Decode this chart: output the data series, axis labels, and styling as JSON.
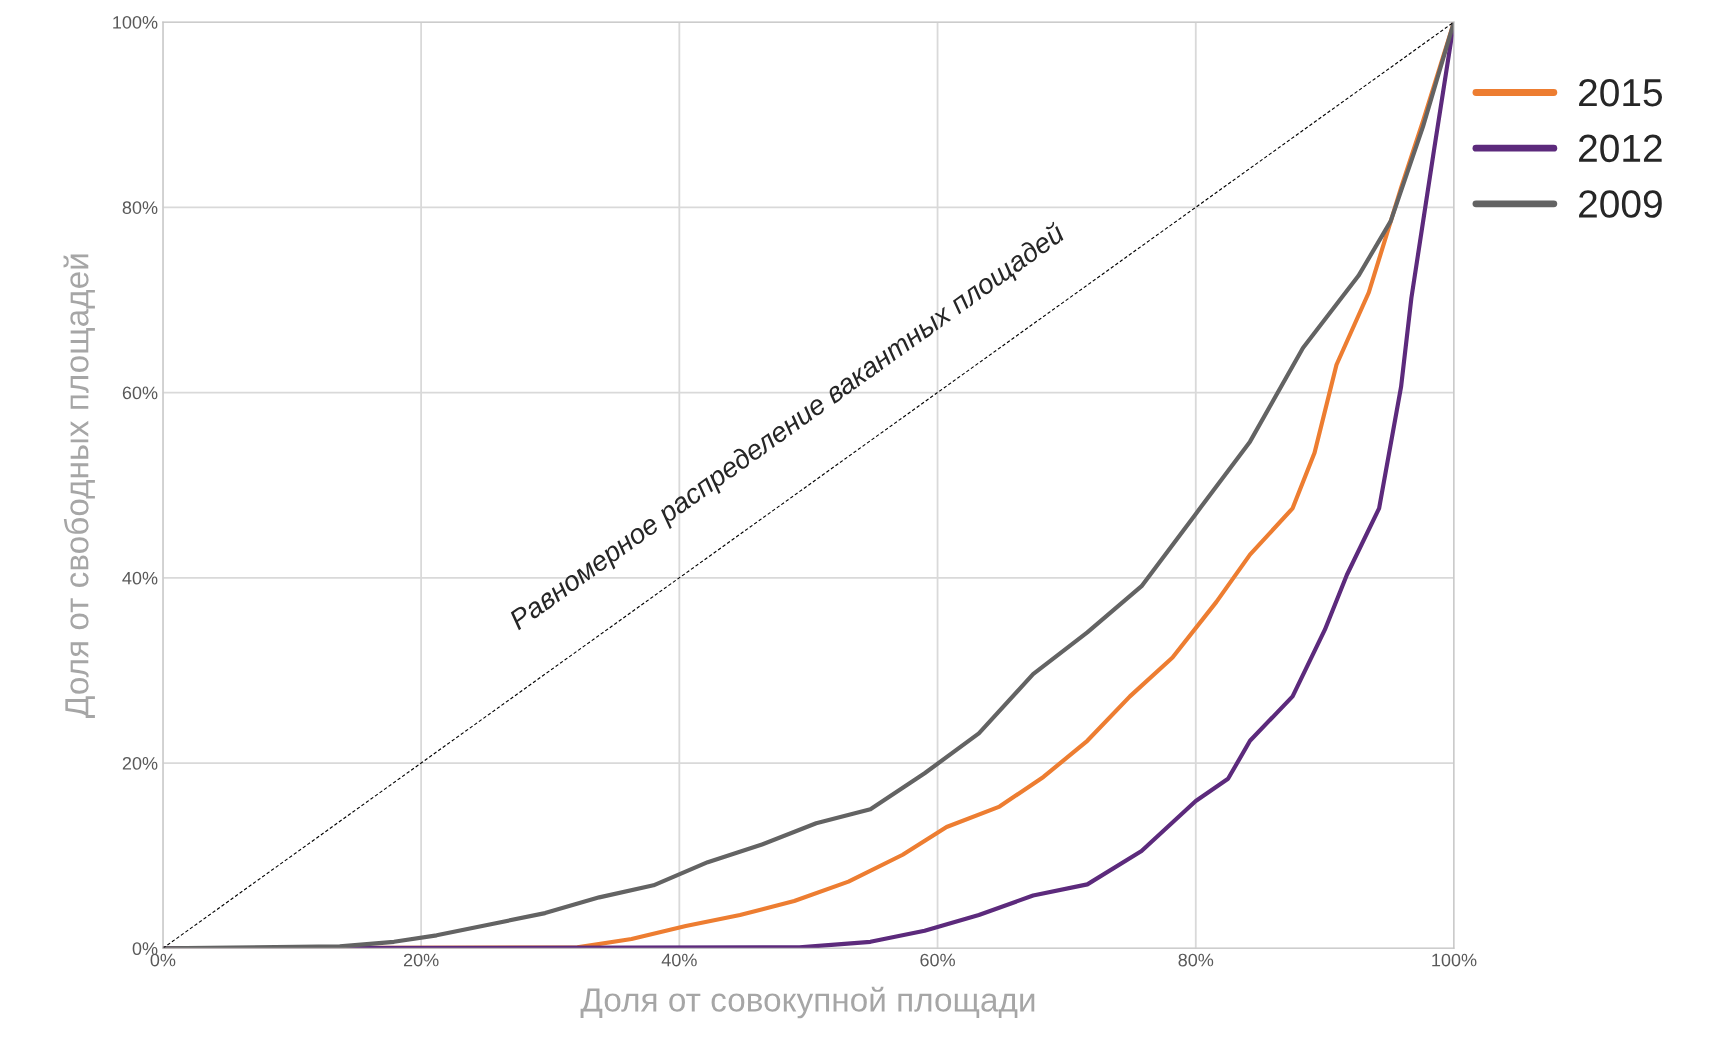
{
  "chart_data": {
    "type": "line",
    "xlabel": "Доля от совокупной площади",
    "ylabel": "Доля от свободных площадей",
    "annotations": [
      "Равномерное распределение вакантных площадей"
    ],
    "xlim": [
      0,
      100
    ],
    "ylim": [
      0,
      100
    ],
    "xticks": [
      {
        "value": 0,
        "label": "0%"
      },
      {
        "value": 20,
        "label": "20%"
      },
      {
        "value": 40,
        "label": "40%"
      },
      {
        "value": 60,
        "label": "60%"
      },
      {
        "value": 80,
        "label": "80%"
      },
      {
        "value": 100,
        "label": "100%"
      }
    ],
    "yticks": [
      {
        "value": 0,
        "label": "0%"
      },
      {
        "value": 20,
        "label": "20%"
      },
      {
        "value": 40,
        "label": "40%"
      },
      {
        "value": 60,
        "label": "60%"
      },
      {
        "value": 80,
        "label": "80%"
      },
      {
        "value": 100,
        "label": "100%"
      }
    ],
    "grid": true,
    "legend": "right",
    "marker": "none",
    "series": [
      {
        "name": "2015",
        "color": "#ed7d31",
        "x": [
          0,
          32.1,
          36.3,
          40.5,
          44.7,
          48.9,
          53.1,
          57.3,
          60.7,
          64.8,
          68.2,
          71.6,
          74.9,
          78.2,
          81.6,
          84.2,
          87.5,
          89.2,
          90.9,
          93.4,
          95.9,
          97.6,
          100
        ],
        "values": [
          0,
          0.1,
          1.0,
          2.4,
          3.6,
          5.1,
          7.2,
          10.1,
          13.1,
          15.3,
          18.5,
          22.4,
          27.2,
          31.4,
          37.4,
          42.5,
          47.5,
          53.5,
          63.0,
          70.8,
          82.1,
          89.3,
          100
        ]
      },
      {
        "name": "2012",
        "color": "#5c2a7c",
        "x": [
          0,
          49.3,
          54.8,
          59.0,
          63.2,
          67.4,
          71.6,
          75.8,
          80.0,
          82.5,
          84.2,
          87.5,
          90.0,
          91.7,
          94.2,
          95.9,
          96.7,
          98.4,
          100
        ],
        "values": [
          0,
          0.1,
          0.7,
          1.9,
          3.6,
          5.7,
          6.9,
          10.5,
          15.9,
          18.3,
          22.4,
          27.2,
          34.4,
          40.3,
          47.5,
          60.6,
          70.2,
          85.7,
          100
        ]
      },
      {
        "name": "2009",
        "color": "#636363",
        "x": [
          0,
          13.7,
          17.9,
          21.2,
          25.4,
          29.6,
          33.8,
          38.0,
          42.2,
          46.4,
          50.6,
          54.8,
          59.0,
          63.2,
          67.4,
          71.6,
          75.8,
          80.0,
          84.2,
          88.3,
          92.6,
          95.1,
          97.6,
          100
        ],
        "values": [
          0,
          0.2,
          0.7,
          1.4,
          2.6,
          3.8,
          5.5,
          6.8,
          9.3,
          11.2,
          13.5,
          15.0,
          18.9,
          23.2,
          29.6,
          34.1,
          39.1,
          46.9,
          54.7,
          64.8,
          72.6,
          78.5,
          88.7,
          100
        ]
      },
      {
        "type": "line",
        "color": "#000000",
        "line_style": "dashed",
        "x": [
          0,
          100
        ],
        "values": [
          0,
          100
        ]
      }
    ]
  }
}
